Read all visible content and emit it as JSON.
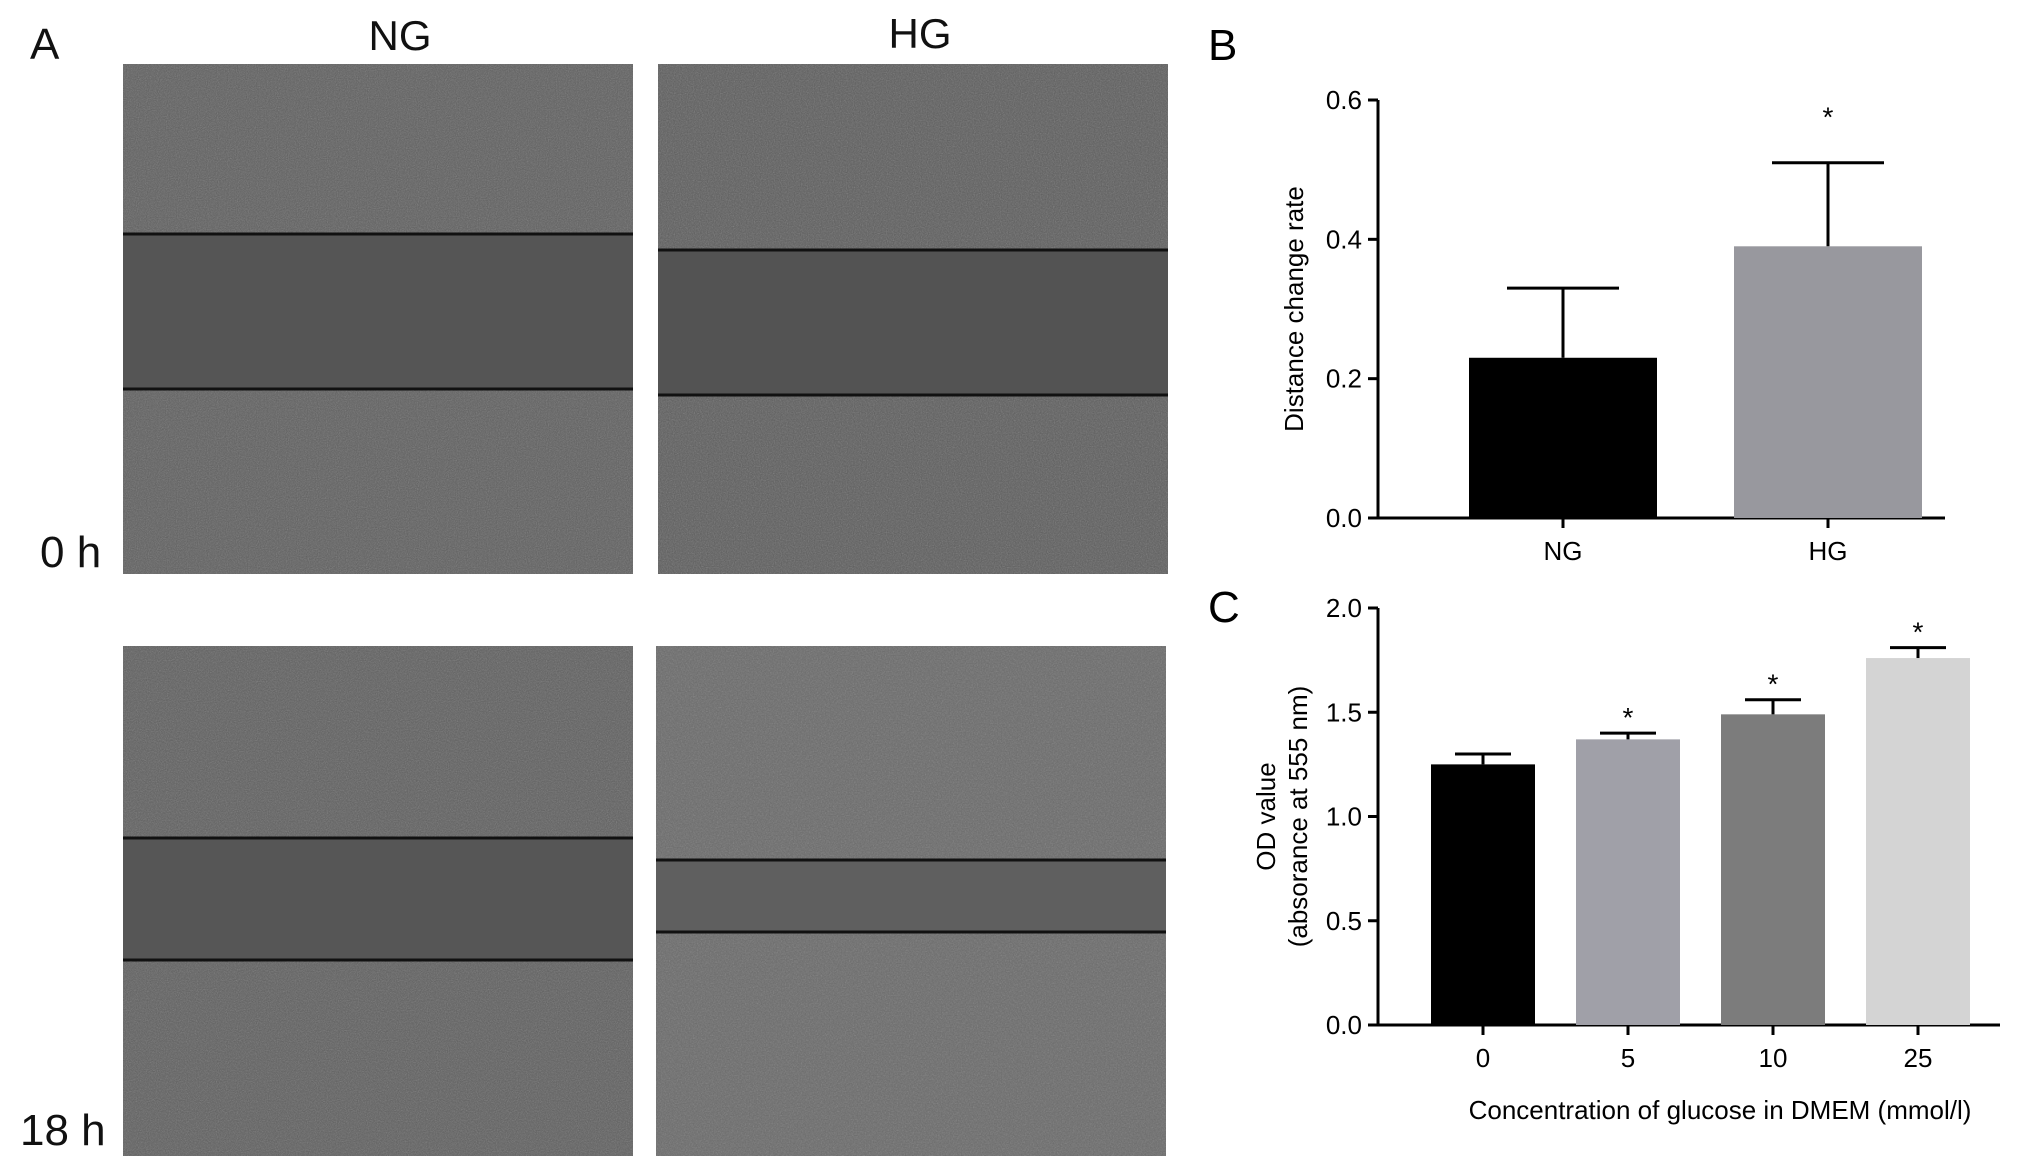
{
  "panel_a": {
    "letter": "A",
    "columns": [
      "NG",
      "HG"
    ],
    "time_labels": [
      "0 h",
      "18 h"
    ]
  },
  "chart_data": [
    {
      "panel": "B",
      "type": "bar",
      "categories": [
        "NG",
        "HG"
      ],
      "values": [
        0.23,
        0.39
      ],
      "error": [
        0.1,
        0.12
      ],
      "significance": [
        "",
        "*"
      ],
      "colors": [
        "#000000",
        "#98989e"
      ],
      "xlabel": "",
      "ylabel": "Distance change rate",
      "ylim": [
        0,
        0.6
      ],
      "yticks": [
        "0.0",
        "0.2",
        "0.4",
        "0.6"
      ],
      "grid": false,
      "legend": "none"
    },
    {
      "panel": "C",
      "type": "bar",
      "categories": [
        "0",
        "5",
        "10",
        "25"
      ],
      "values": [
        1.25,
        1.37,
        1.49,
        1.76
      ],
      "error": [
        0.05,
        0.03,
        0.07,
        0.05
      ],
      "significance": [
        "",
        "*",
        "*",
        "*"
      ],
      "colors": [
        "#000000",
        "#a0a0a8",
        "#7c7c7c",
        "#d4d4d4"
      ],
      "xlabel": "Concentration of glucose in DMEM (mmol/l)",
      "ylabel": [
        "OD value",
        "(absorance at 555 nm)"
      ],
      "ylim": [
        0,
        2.0
      ],
      "yticks": [
        "0.0",
        "0.5",
        "1.0",
        "1.5",
        "2.0"
      ],
      "grid": false,
      "legend": "none"
    }
  ]
}
